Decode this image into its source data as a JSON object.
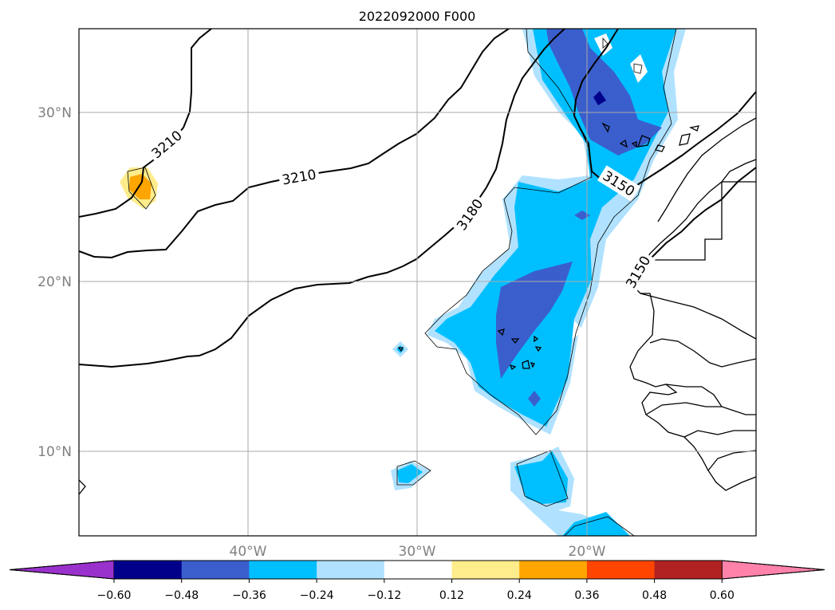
{
  "title": "2022092000 F000",
  "map": {
    "lat_labels": [
      "30°N",
      "20°N",
      "10°N"
    ],
    "lon_labels": [
      "40°W",
      "30°W",
      "20°W"
    ],
    "contour_labels": [
      "3210",
      "3210",
      "3180",
      "3150",
      "3150"
    ]
  },
  "colorbar": {
    "ticks": [
      "−0.60",
      "−0.48",
      "−0.36",
      "−0.24",
      "−0.12",
      "0.12",
      "0.24",
      "0.36",
      "0.48",
      "0.60"
    ],
    "colors": [
      "#9932cc",
      "#00008b",
      "#3a5fcd",
      "#00bfff",
      "#b0e2ff",
      "#ffffff",
      "#ffec8b",
      "#ffa500",
      "#ff4500",
      "#b22222",
      "#ff82ab"
    ]
  },
  "colors": {
    "deep_blue": "#00008b",
    "royal_blue": "#3a5fcd",
    "sky_blue": "#00bfff",
    "light_blue": "#b0e2ff",
    "light_yellow": "#ffec8b",
    "orange": "#ffa500"
  }
}
